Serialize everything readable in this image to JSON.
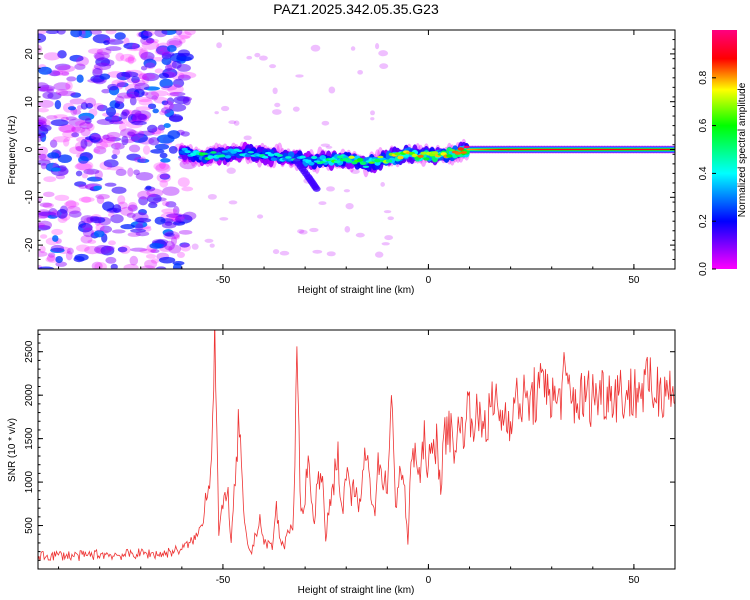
{
  "title": "PAZ1.2025.342.05.35.G23",
  "chart_data": [
    {
      "type": "heatmap",
      "title": "PAZ1.2025.342.05.35.G23",
      "xlabel": "Height of straight line (km)",
      "ylabel": "Frequency (Hz)",
      "xlim": [
        -95,
        60
      ],
      "ylim": [
        -25,
        25
      ],
      "xticks": [
        -50,
        0,
        50
      ],
      "yticks": [
        -20,
        -10,
        0,
        10,
        20
      ],
      "colorbar": {
        "label": "Normalized spectral amplitude",
        "range": [
          0,
          1
        ],
        "ticks": [
          0.0,
          0.2,
          0.4,
          0.6,
          0.8
        ],
        "tick_labels": [
          "0.0",
          "0.2",
          "0.4",
          "0.6",
          "0.8"
        ]
      },
      "signal_track": [
        {
          "x": -60,
          "f": -0.5,
          "amp": 0.3
        },
        {
          "x": -55,
          "f": -1.5,
          "amp": 0.45
        },
        {
          "x": -50,
          "f": -1.0,
          "amp": 0.4
        },
        {
          "x": -45,
          "f": -0.5,
          "amp": 0.35
        },
        {
          "x": -40,
          "f": -1.2,
          "amp": 0.4
        },
        {
          "x": -35,
          "f": -1.5,
          "amp": 0.35
        },
        {
          "x": -30,
          "f": -2.3,
          "amp": 0.4
        },
        {
          "x": -25,
          "f": -2.2,
          "amp": 0.5
        },
        {
          "x": -20,
          "f": -2.0,
          "amp": 0.6
        },
        {
          "x": -15,
          "f": -3.0,
          "amp": 0.5
        },
        {
          "x": -10,
          "f": -1.8,
          "amp": 0.6
        },
        {
          "x": -5,
          "f": -1.0,
          "amp": 0.7
        },
        {
          "x": 0,
          "f": -1.4,
          "amp": 0.65
        },
        {
          "x": 5,
          "f": -1.0,
          "amp": 0.7
        },
        {
          "x": 10,
          "f": 0.0,
          "amp": 0.8
        },
        {
          "x": 20,
          "f": 0.0,
          "amp": 0.9
        },
        {
          "x": 30,
          "f": 0.0,
          "amp": 0.9
        },
        {
          "x": 40,
          "f": 0.0,
          "amp": 0.9
        },
        {
          "x": 50,
          "f": 0.0,
          "amp": 0.9
        },
        {
          "x": 60,
          "f": 0.0,
          "amp": 0.9
        }
      ],
      "branch_track": [
        {
          "x": -32,
          "f": -2.5
        },
        {
          "x": -29,
          "f": -6.0
        },
        {
          "x": -27,
          "f": -8.5
        }
      ],
      "noise_region": {
        "x_range": [
          -95,
          -58
        ],
        "f_range": [
          -25,
          25
        ],
        "amp_range": [
          0.0,
          0.3
        ]
      }
    },
    {
      "type": "line",
      "xlabel": "Height of straight line (km)",
      "ylabel": "SNR (10 * v/v)",
      "xlim": [
        -95,
        60
      ],
      "ylim": [
        0,
        2750
      ],
      "xticks": [
        -50,
        0,
        50
      ],
      "yticks": [
        500,
        1000,
        1500,
        2000,
        2500
      ],
      "color": "#ee3333",
      "series": [
        {
          "name": "SNR",
          "x": [
            -95,
            -90,
            -85,
            -80,
            -75,
            -70,
            -65,
            -60,
            -58,
            -56,
            -55,
            -54,
            -53,
            -52,
            -51,
            -50,
            -49,
            -48,
            -47,
            -46,
            -45,
            -44,
            -43,
            -42,
            -41,
            -40,
            -39,
            -38,
            -37,
            -36,
            -35,
            -34,
            -33,
            -32,
            -31,
            -30,
            -29,
            -28,
            -27,
            -26,
            -25,
            -24,
            -23,
            -22,
            -21,
            -20,
            -19,
            -18,
            -17,
            -16,
            -15,
            -14,
            -13,
            -12,
            -11,
            -10,
            -9,
            -8,
            -7,
            -6,
            -5,
            -4,
            -3,
            -2,
            -1,
            0,
            1,
            2,
            3,
            4,
            5,
            6,
            7,
            8,
            9,
            10,
            12,
            14,
            16,
            18,
            20,
            22,
            24,
            26,
            28,
            29,
            30,
            31,
            33,
            35,
            37,
            40,
            43,
            46,
            49,
            52,
            55,
            58,
            60
          ],
          "values": [
            140,
            160,
            150,
            170,
            160,
            180,
            170,
            230,
            300,
            400,
            550,
            900,
            1100,
            2720,
            400,
            700,
            1000,
            300,
            1000,
            1750,
            600,
            250,
            200,
            400,
            600,
            280,
            300,
            250,
            700,
            300,
            280,
            500,
            400,
            2200,
            600,
            900,
            1300,
            500,
            1000,
            1200,
            300,
            800,
            1000,
            1400,
            600,
            1100,
            800,
            1000,
            600,
            1100,
            1300,
            900,
            700,
            1300,
            1000,
            1000,
            1880,
            700,
            1200,
            1000,
            300,
            1400,
            1300,
            1000,
            1500,
            1200,
            1300,
            1500,
            1000,
            1500,
            1700,
            1400,
            1550,
            1600,
            1750,
            1850,
            1700,
            1700,
            1900,
            1750,
            1800,
            1950,
            1900,
            2000,
            2050,
            2250,
            1950,
            1900,
            2150,
            1950,
            1950,
            2000,
            2050,
            2050,
            2000,
            2100,
            2050,
            2150,
            1900
          ]
        }
      ]
    }
  ]
}
